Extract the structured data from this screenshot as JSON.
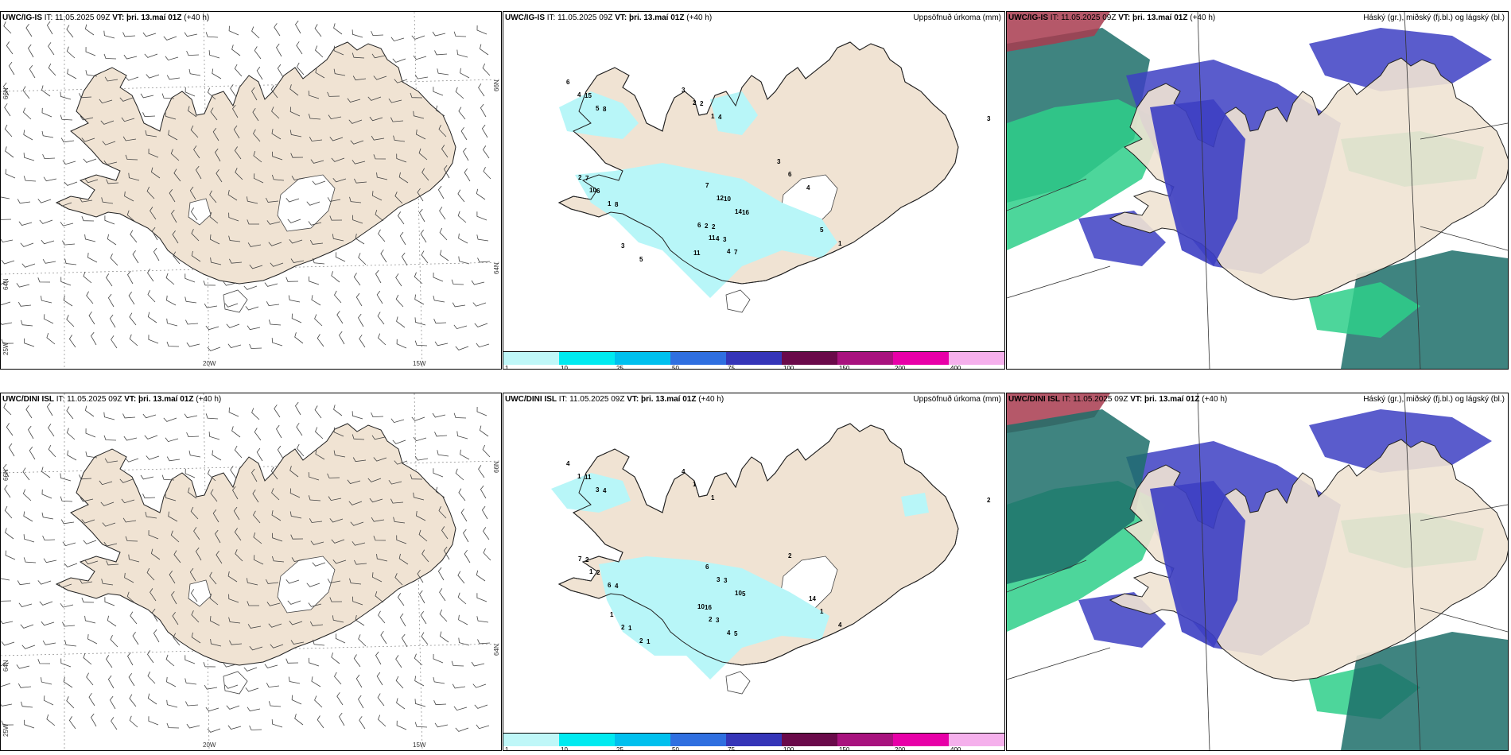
{
  "colors": {
    "land": "#f0e3d3",
    "precip": "#b8f6f8",
    "cloud_high": "#3d3fc3",
    "cloud_mid": "#2ecf8a",
    "cloud_dark": "#1d6f6a",
    "cloud_red": "#a83b4f"
  },
  "rows": [
    {
      "model": "UWC/IG-IS",
      "it": "IT: 11.05.2025 09Z",
      "vt": "VT: þri. 13.maí 01Z",
      "lead": "(+40 h)",
      "wind_grid_labels": {
        "lat66": "66N",
        "lat64": "64N",
        "lon25": "25W",
        "lon20": "20W",
        "lon15": "15W",
        "lat66r": "66N",
        "lat64r": "64N"
      },
      "precip_header": "Uppsöfnuð úrkoma (mm)",
      "cloud_header": "Háský (gr.), miðský (fj.bl.) og lágský (bl.)",
      "precip_values": [
        {
          "v": "3",
          "region": "ne-island"
        },
        {
          "v": "4",
          "region": "westfjords"
        },
        {
          "v": "5",
          "region": "westfjords"
        },
        {
          "v": "6",
          "region": "westfjords"
        },
        {
          "v": "15",
          "region": "westfjords"
        },
        {
          "v": "8",
          "region": "westfjords"
        },
        {
          "v": "2",
          "region": "north"
        },
        {
          "v": "1",
          "region": "north"
        },
        {
          "v": "3",
          "region": "north"
        },
        {
          "v": "2",
          "region": "north"
        },
        {
          "v": "4",
          "region": "north"
        },
        {
          "v": "10",
          "region": "west"
        },
        {
          "v": "1",
          "region": "west"
        },
        {
          "v": "2",
          "region": "west"
        },
        {
          "v": "6",
          "region": "west"
        },
        {
          "v": "8",
          "region": "west"
        },
        {
          "v": "7",
          "region": "west"
        },
        {
          "v": "12",
          "region": "central"
        },
        {
          "v": "14",
          "region": "central"
        },
        {
          "v": "7",
          "region": "central"
        },
        {
          "v": "10",
          "region": "central"
        },
        {
          "v": "16",
          "region": "central"
        },
        {
          "v": "11",
          "region": "south"
        },
        {
          "v": "4",
          "region": "south"
        },
        {
          "v": "6",
          "region": "south"
        },
        {
          "v": "4",
          "region": "south"
        },
        {
          "v": "7",
          "region": "south"
        },
        {
          "v": "2",
          "region": "south"
        },
        {
          "v": "3",
          "region": "south"
        },
        {
          "v": "5",
          "region": "southeast"
        },
        {
          "v": "1",
          "region": "southeast"
        },
        {
          "v": "11",
          "region": "south"
        },
        {
          "v": "2",
          "region": "south"
        },
        {
          "v": "3",
          "region": "southwest"
        },
        {
          "v": "5",
          "region": "southwest"
        },
        {
          "v": "6",
          "region": "east"
        },
        {
          "v": "4",
          "region": "east"
        },
        {
          "v": "3",
          "region": "east"
        }
      ]
    },
    {
      "model": "UWC/DINI ISL",
      "it": "IT: 11.05.2025 09Z",
      "vt": "VT: þri. 13.maí 01Z",
      "lead": "(+40 h)",
      "wind_grid_labels": {
        "lat66": "66N",
        "lat64": "64N",
        "lon25": "25W",
        "lon20": "20W",
        "lon15": "15W",
        "lat66r": "66N",
        "lat64r": "64N"
      },
      "precip_header": "Uppsöfnuð úrkoma (mm)",
      "cloud_header": "Háský (gr.), miðský (fj.bl.) og lágský (bl.)",
      "precip_values": [
        {
          "v": "1",
          "region": "westfjords"
        },
        {
          "v": "3",
          "region": "westfjords"
        },
        {
          "v": "4",
          "region": "westfjords"
        },
        {
          "v": "11",
          "region": "westfjords"
        },
        {
          "v": "4",
          "region": "westfjords"
        },
        {
          "v": "1",
          "region": "north"
        },
        {
          "v": "1",
          "region": "north"
        },
        {
          "v": "4",
          "region": "north"
        },
        {
          "v": "2",
          "region": "ne-island"
        },
        {
          "v": "2",
          "region": "east"
        },
        {
          "v": "1",
          "region": "west"
        },
        {
          "v": "6",
          "region": "west"
        },
        {
          "v": "7",
          "region": "west"
        },
        {
          "v": "2",
          "region": "west"
        },
        {
          "v": "4",
          "region": "west"
        },
        {
          "v": "3",
          "region": "central"
        },
        {
          "v": "10",
          "region": "central"
        },
        {
          "v": "6",
          "region": "central"
        },
        {
          "v": "3",
          "region": "central"
        },
        {
          "v": "5",
          "region": "central"
        },
        {
          "v": "2",
          "region": "south"
        },
        {
          "v": "4",
          "region": "south"
        },
        {
          "v": "10",
          "region": "south"
        },
        {
          "v": "3",
          "region": "south"
        },
        {
          "v": "5",
          "region": "south"
        },
        {
          "v": "16",
          "region": "south"
        },
        {
          "v": "1",
          "region": "southeast"
        },
        {
          "v": "4",
          "region": "southeast"
        },
        {
          "v": "14",
          "region": "southeast"
        },
        {
          "v": "2",
          "region": "southwest"
        },
        {
          "v": "2",
          "region": "southwest"
        },
        {
          "v": "1",
          "region": "southwest"
        },
        {
          "v": "1",
          "region": "southwest"
        },
        {
          "v": "1",
          "region": "southwest"
        },
        {
          "v": "2",
          "region": "west"
        }
      ]
    }
  ],
  "legend": {
    "colors": [
      "#bff7f8",
      "#00eaf0",
      "#00c0ee",
      "#2f6fe0",
      "#3535b8",
      "#6a0a4a",
      "#a8127e",
      "#e800a8",
      "#f5b0ec"
    ],
    "ticks": [
      "1",
      "10",
      "25",
      "50",
      "75",
      "100",
      "150",
      "200",
      "400"
    ]
  }
}
